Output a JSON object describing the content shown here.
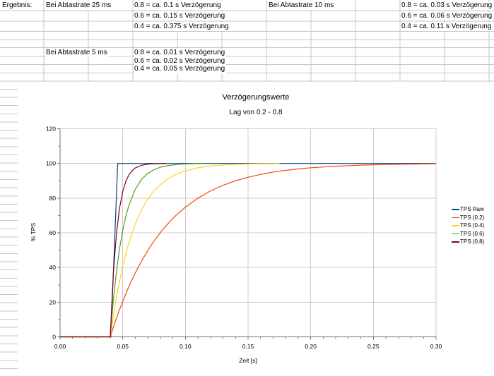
{
  "sheet": {
    "result_label": "Ergebnis:",
    "groups": [
      {
        "heading": "Bei Abtastrate 25 ms",
        "values": [
          "0.8 = ca. 0.1 s Verzögerung",
          "0.6 = ca. 0.15 s Verzögerung",
          "0.4 = ca. 0.375 s Verzögerung"
        ]
      },
      {
        "heading": "Bei Abtastrate 10 ms",
        "values": [
          "0.8 = ca. 0.03 s Verzögerung",
          "0.6 = ca. 0.06 s Verzögerung",
          "0.4 = ca. 0.11 s Verzögerung"
        ]
      },
      {
        "heading": "Bei Abtastrate 5 ms",
        "values": [
          "0.8 = ca. 0.01 s Verzögerung",
          "0.6 = ca. 0.02 s Verzögerung",
          "0.4 = ca. 0.05 s Verzögerung"
        ]
      }
    ]
  },
  "chart_data": {
    "type": "line",
    "title": "Verzögerungswerte",
    "subtitle": "Lag von 0.2 - 0.8",
    "xlabel": "Zeit [s]",
    "ylabel": "% TPS",
    "xlim": [
      0,
      0.3
    ],
    "ylim": [
      0,
      120
    ],
    "xticks": [
      0,
      0.05,
      0.1,
      0.15,
      0.2,
      0.25,
      0.3
    ],
    "xtick_labels": [
      "0.00",
      "0.05",
      "0.10",
      "0.15",
      "0.20",
      "0.25",
      "0.30"
    ],
    "yticks": [
      0,
      20,
      40,
      60,
      80,
      100,
      120
    ],
    "ytick_labels": [
      "0",
      "20",
      "40",
      "60",
      "80",
      "100",
      "120"
    ],
    "x_minor_step": 0.01,
    "y_minor_step": 10,
    "grid": true,
    "legend_position": "right",
    "series": [
      {
        "name": "TPS Raw",
        "color": "#004586",
        "points": [
          [
            0,
            0
          ],
          [
            0.02,
            0
          ],
          [
            0.0405,
            0
          ],
          [
            0.046,
            100
          ],
          [
            0.1,
            100
          ],
          [
            0.2,
            100
          ],
          [
            0.3,
            100
          ]
        ]
      },
      {
        "name": "TPS (0.2)",
        "color": "#FF420E",
        "points": [
          [
            0,
            0
          ],
          [
            0.04,
            0
          ],
          [
            0.045,
            10.9
          ],
          [
            0.05,
            20.5
          ],
          [
            0.055,
            29.2
          ],
          [
            0.06,
            36.9
          ],
          [
            0.065,
            43.7
          ],
          [
            0.07,
            49.8
          ],
          [
            0.075,
            55.3
          ],
          [
            0.08,
            60.1
          ],
          [
            0.085,
            64.4
          ],
          [
            0.09,
            68.3
          ],
          [
            0.095,
            71.7
          ],
          [
            0.1,
            74.8
          ],
          [
            0.11,
            80
          ],
          [
            0.12,
            84.1
          ],
          [
            0.13,
            87.4
          ],
          [
            0.14,
            90
          ],
          [
            0.15,
            92
          ],
          [
            0.16,
            93.7
          ],
          [
            0.17,
            95
          ],
          [
            0.18,
            96
          ],
          [
            0.19,
            96.8
          ],
          [
            0.2,
            97.5
          ],
          [
            0.22,
            98.4
          ],
          [
            0.24,
            99
          ],
          [
            0.26,
            99.4
          ],
          [
            0.28,
            99.6
          ],
          [
            0.3,
            99.8
          ]
        ]
      },
      {
        "name": "TPS (0.4)",
        "color": "#FFD320",
        "points": [
          [
            0,
            0
          ],
          [
            0.04,
            0
          ],
          [
            0.045,
            23.1
          ],
          [
            0.05,
            40.9
          ],
          [
            0.055,
            54.6
          ],
          [
            0.06,
            65.1
          ],
          [
            0.065,
            73.2
          ],
          [
            0.07,
            79.4
          ],
          [
            0.075,
            84.2
          ],
          [
            0.08,
            87.8
          ],
          [
            0.085,
            90.6
          ],
          [
            0.09,
            92.8
          ],
          [
            0.095,
            94.5
          ],
          [
            0.1,
            95.7
          ],
          [
            0.11,
            97.5
          ],
          [
            0.12,
            98.5
          ],
          [
            0.13,
            99.1
          ],
          [
            0.14,
            99.5
          ],
          [
            0.15,
            99.7
          ],
          [
            0.16,
            99.8
          ],
          [
            0.175,
            99.9
          ]
        ]
      },
      {
        "name": "TPS (0.6)",
        "color": "#579D1C",
        "points": [
          [
            0,
            0
          ],
          [
            0.04,
            0
          ],
          [
            0.0425,
            21.2
          ],
          [
            0.045,
            37.9
          ],
          [
            0.0475,
            51
          ],
          [
            0.05,
            61.4
          ],
          [
            0.0525,
            69.6
          ],
          [
            0.055,
            76
          ],
          [
            0.06,
            85.1
          ],
          [
            0.065,
            90.8
          ],
          [
            0.07,
            94.3
          ],
          [
            0.075,
            96.4
          ],
          [
            0.08,
            97.8
          ],
          [
            0.085,
            98.6
          ],
          [
            0.09,
            99.1
          ],
          [
            0.095,
            99.5
          ],
          [
            0.1,
            99.7
          ],
          [
            0.105,
            99.8
          ],
          [
            0.115,
            99.9
          ]
        ]
      },
      {
        "name": "TPS (0.8)",
        "color": "#7E0021",
        "points": [
          [
            0,
            0
          ],
          [
            0.04,
            0
          ],
          [
            0.0425,
            36.5
          ],
          [
            0.045,
            59.7
          ],
          [
            0.0475,
            74.4
          ],
          [
            0.05,
            83.8
          ],
          [
            0.0525,
            89.7
          ],
          [
            0.055,
            93.5
          ],
          [
            0.0575,
            95.8
          ],
          [
            0.06,
            97.4
          ],
          [
            0.065,
            98.9
          ],
          [
            0.07,
            99.6
          ],
          [
            0.075,
            99.8
          ],
          [
            0.08,
            99.9
          ],
          [
            0.085,
            100
          ]
        ]
      }
    ]
  }
}
